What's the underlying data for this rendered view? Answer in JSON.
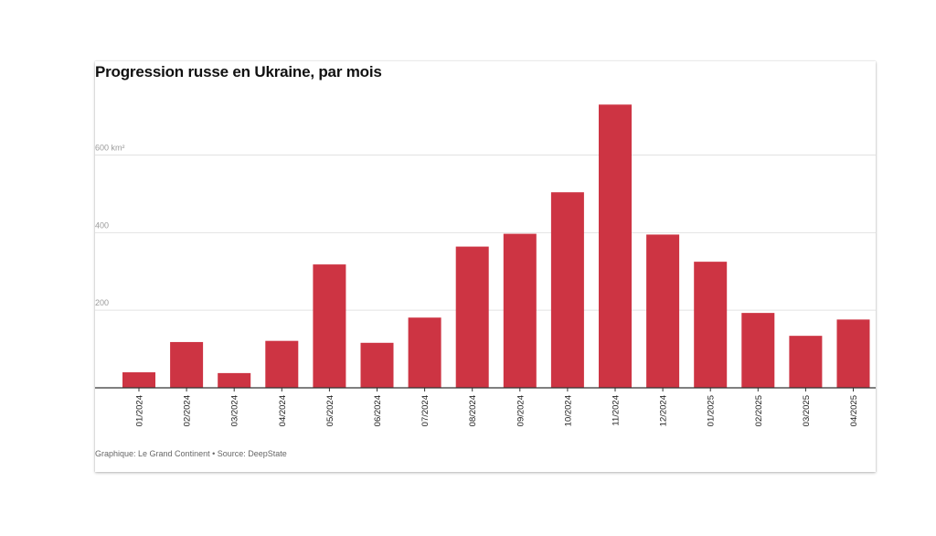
{
  "title": "Progression russe en Ukraine, par mois",
  "source": "Graphique: Le Grand Continent • Source: DeepState",
  "colors": {
    "bar": "#cd3443",
    "grid": "#e2e2e2",
    "baseline": "#333333"
  },
  "chart_data": {
    "type": "bar",
    "title": "Progression russe en Ukraine, par mois",
    "xlabel": "",
    "ylabel": "",
    "categories": [
      "01/2024",
      "02/2024",
      "03/2024",
      "04/2024",
      "05/2024",
      "06/2024",
      "07/2024",
      "08/2024",
      "09/2024",
      "10/2024",
      "11/2024",
      "12/2024",
      "01/2025",
      "02/2025",
      "03/2025",
      "04/2025"
    ],
    "values": [
      40,
      118,
      38,
      121,
      318,
      116,
      181,
      364,
      397,
      504,
      730,
      395,
      325,
      193,
      134,
      176
    ],
    "ylim": [
      0,
      800
    ],
    "yticks": [
      {
        "value": 200,
        "label": "200"
      },
      {
        "value": 400,
        "label": "400"
      },
      {
        "value": 600,
        "label": "600 km²"
      }
    ],
    "grid": true,
    "legend": "none"
  }
}
